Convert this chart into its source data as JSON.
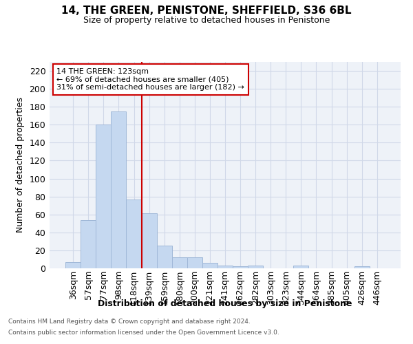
{
  "title": "14, THE GREEN, PENISTONE, SHEFFIELD, S36 6BL",
  "subtitle": "Size of property relative to detached houses in Penistone",
  "xlabel": "Distribution of detached houses by size in Penistone",
  "ylabel": "Number of detached properties",
  "bar_labels": [
    "36sqm",
    "57sqm",
    "77sqm",
    "98sqm",
    "118sqm",
    "139sqm",
    "159sqm",
    "180sqm",
    "200sqm",
    "221sqm",
    "241sqm",
    "262sqm",
    "282sqm",
    "303sqm",
    "323sqm",
    "344sqm",
    "364sqm",
    "385sqm",
    "405sqm",
    "426sqm",
    "446sqm"
  ],
  "bar_values": [
    7,
    54,
    160,
    175,
    77,
    61,
    25,
    12,
    12,
    6,
    3,
    2,
    3,
    0,
    0,
    3,
    0,
    0,
    0,
    2,
    0
  ],
  "bar_color": "#c5d8f0",
  "bar_edge_color": "#a0b8d8",
  "vline_x": 4.5,
  "vline_color": "#cc0000",
  "ylim": [
    0,
    230
  ],
  "yticks": [
    0,
    20,
    40,
    60,
    80,
    100,
    120,
    140,
    160,
    180,
    200,
    220
  ],
  "annotation_title": "14 THE GREEN: 123sqm",
  "annotation_line1": "← 69% of detached houses are smaller (405)",
  "annotation_line2": "31% of semi-detached houses are larger (182) →",
  "annotation_box_color": "#cc0000",
  "grid_color": "#d0d8e8",
  "bg_color": "#eef2f8",
  "footer_line1": "Contains HM Land Registry data © Crown copyright and database right 2024.",
  "footer_line2": "Contains public sector information licensed under the Open Government Licence v3.0."
}
